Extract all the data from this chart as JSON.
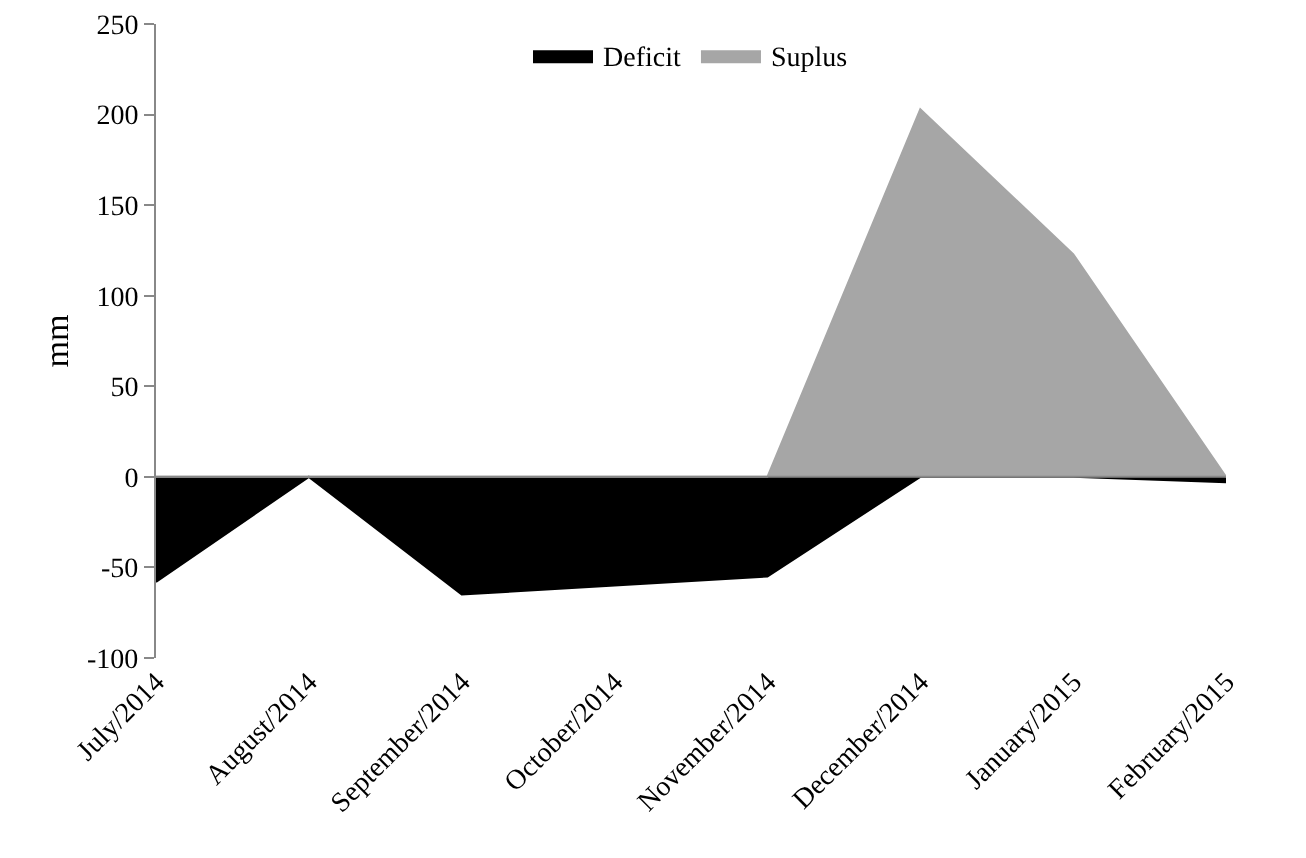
{
  "chart_data": {
    "type": "area",
    "ylabel": "mm",
    "categories": [
      "July/2014",
      "August/2014",
      "September/2014",
      "October/2014",
      "November/2014",
      "December/2014",
      "January/2015",
      "February/2015"
    ],
    "series": [
      {
        "name": "Deficit",
        "color": "#000000",
        "values": [
          -58,
          0,
          -65,
          -60,
          -55,
          0,
          0,
          -3
        ]
      },
      {
        "name": "Suplus",
        "color": "#a6a6a6",
        "values": [
          0,
          0,
          0,
          0,
          0,
          203,
          123,
          0
        ]
      }
    ],
    "ylim": [
      -100,
      250
    ],
    "yticks": [
      -100,
      -50,
      0,
      50,
      100,
      150,
      200,
      250
    ],
    "ref_lines": [
      {
        "axis": "y",
        "value": 0,
        "color": "#888888"
      }
    ],
    "legend": "top"
  }
}
